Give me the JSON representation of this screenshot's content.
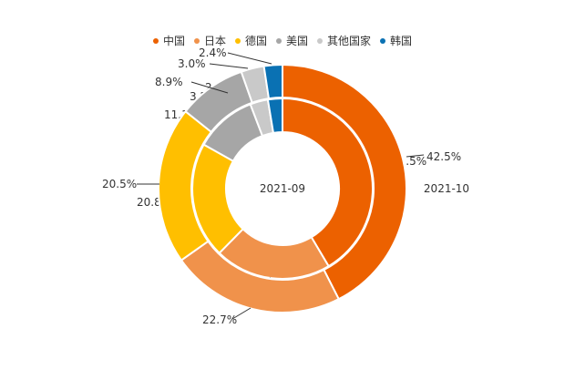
{
  "chart_data": {
    "type": "donut",
    "categories": [
      "中国",
      "日本",
      "德国",
      "美国",
      "其他国家",
      "韩国"
    ],
    "colors": [
      "#ec6100",
      "#f0924b",
      "#ffbf00",
      "#a6a6a6",
      "#c9c9c9",
      "#0a71b3"
    ],
    "series": [
      {
        "name": "2021-09",
        "values": [
          41.5,
          20.9,
          20.8,
          11.1,
          3.2,
          2.6
        ],
        "labels": [
          "41.5%",
          "20.9%",
          "20.8%",
          "11.1%",
          "3.2%",
          "2.6%"
        ]
      },
      {
        "name": "2021-10",
        "values": [
          42.5,
          22.7,
          20.5,
          8.9,
          3.0,
          2.4
        ],
        "labels": [
          "42.5%",
          "22.7%",
          "20.5%",
          "8.9%",
          "3.0%",
          "2.4%"
        ]
      }
    ],
    "legend_position": "top"
  }
}
